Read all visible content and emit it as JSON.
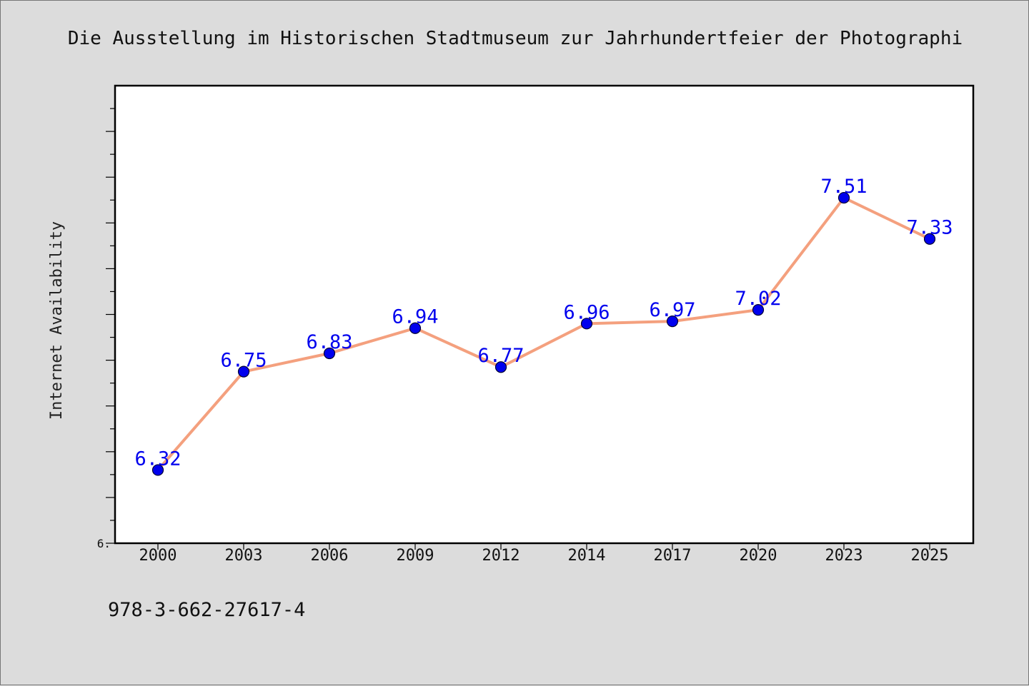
{
  "chart_data": {
    "type": "line",
    "title": "Die Ausstellung im Historischen Stadtmuseum zur Jahrhundertfeier der Photographi",
    "xlabel": "",
    "ylabel": "Internet Availability",
    "categories": [
      "2000",
      "2003",
      "2006",
      "2009",
      "2012",
      "2014",
      "2017",
      "2020",
      "2023",
      "2025"
    ],
    "series": [
      {
        "values": [
          6.32,
          6.75,
          6.83,
          6.94,
          6.77,
          6.96,
          6.97,
          7.02,
          7.51,
          7.33
        ],
        "data_labels": [
          "6.32",
          "6.75",
          "6.83",
          "6.94",
          "6.77",
          "6.96",
          "6.97",
          "7.02",
          "7.51",
          "7.33"
        ]
      }
    ],
    "ylim": [
      6.0,
      8.0
    ],
    "ytick_labels": [
      {
        "value": 6.0,
        "label": "6."
      }
    ],
    "yticks_unlabeled": true,
    "grid": false,
    "legend": "none",
    "line_color": "#f4a07e",
    "marker_color": "#0000ee",
    "label_color": "#0000ee",
    "background_color": "#dcdcdc",
    "plot_background_color": "#ffffff"
  },
  "footer": {
    "isbn": "978-3-662-27617-4"
  }
}
